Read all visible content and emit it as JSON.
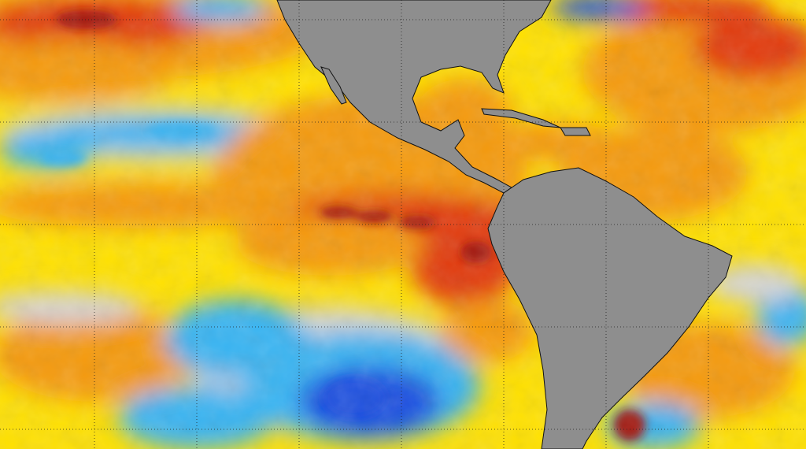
{
  "map": {
    "kind": "sea-surface-temperature-anomaly",
    "colors": {
      "land": "#8e8e8e",
      "deep_red": "#a3140e",
      "red": "#e23a10",
      "orange": "#f59a08",
      "yellow": "#ffe100",
      "neutral": "#d4d4d4",
      "cyan": "#38b4f2",
      "blue": "#1b4fe0",
      "coastline": "#111111",
      "grid": "#222222"
    },
    "graticule": {
      "style": "dotted",
      "visible": true
    }
  }
}
